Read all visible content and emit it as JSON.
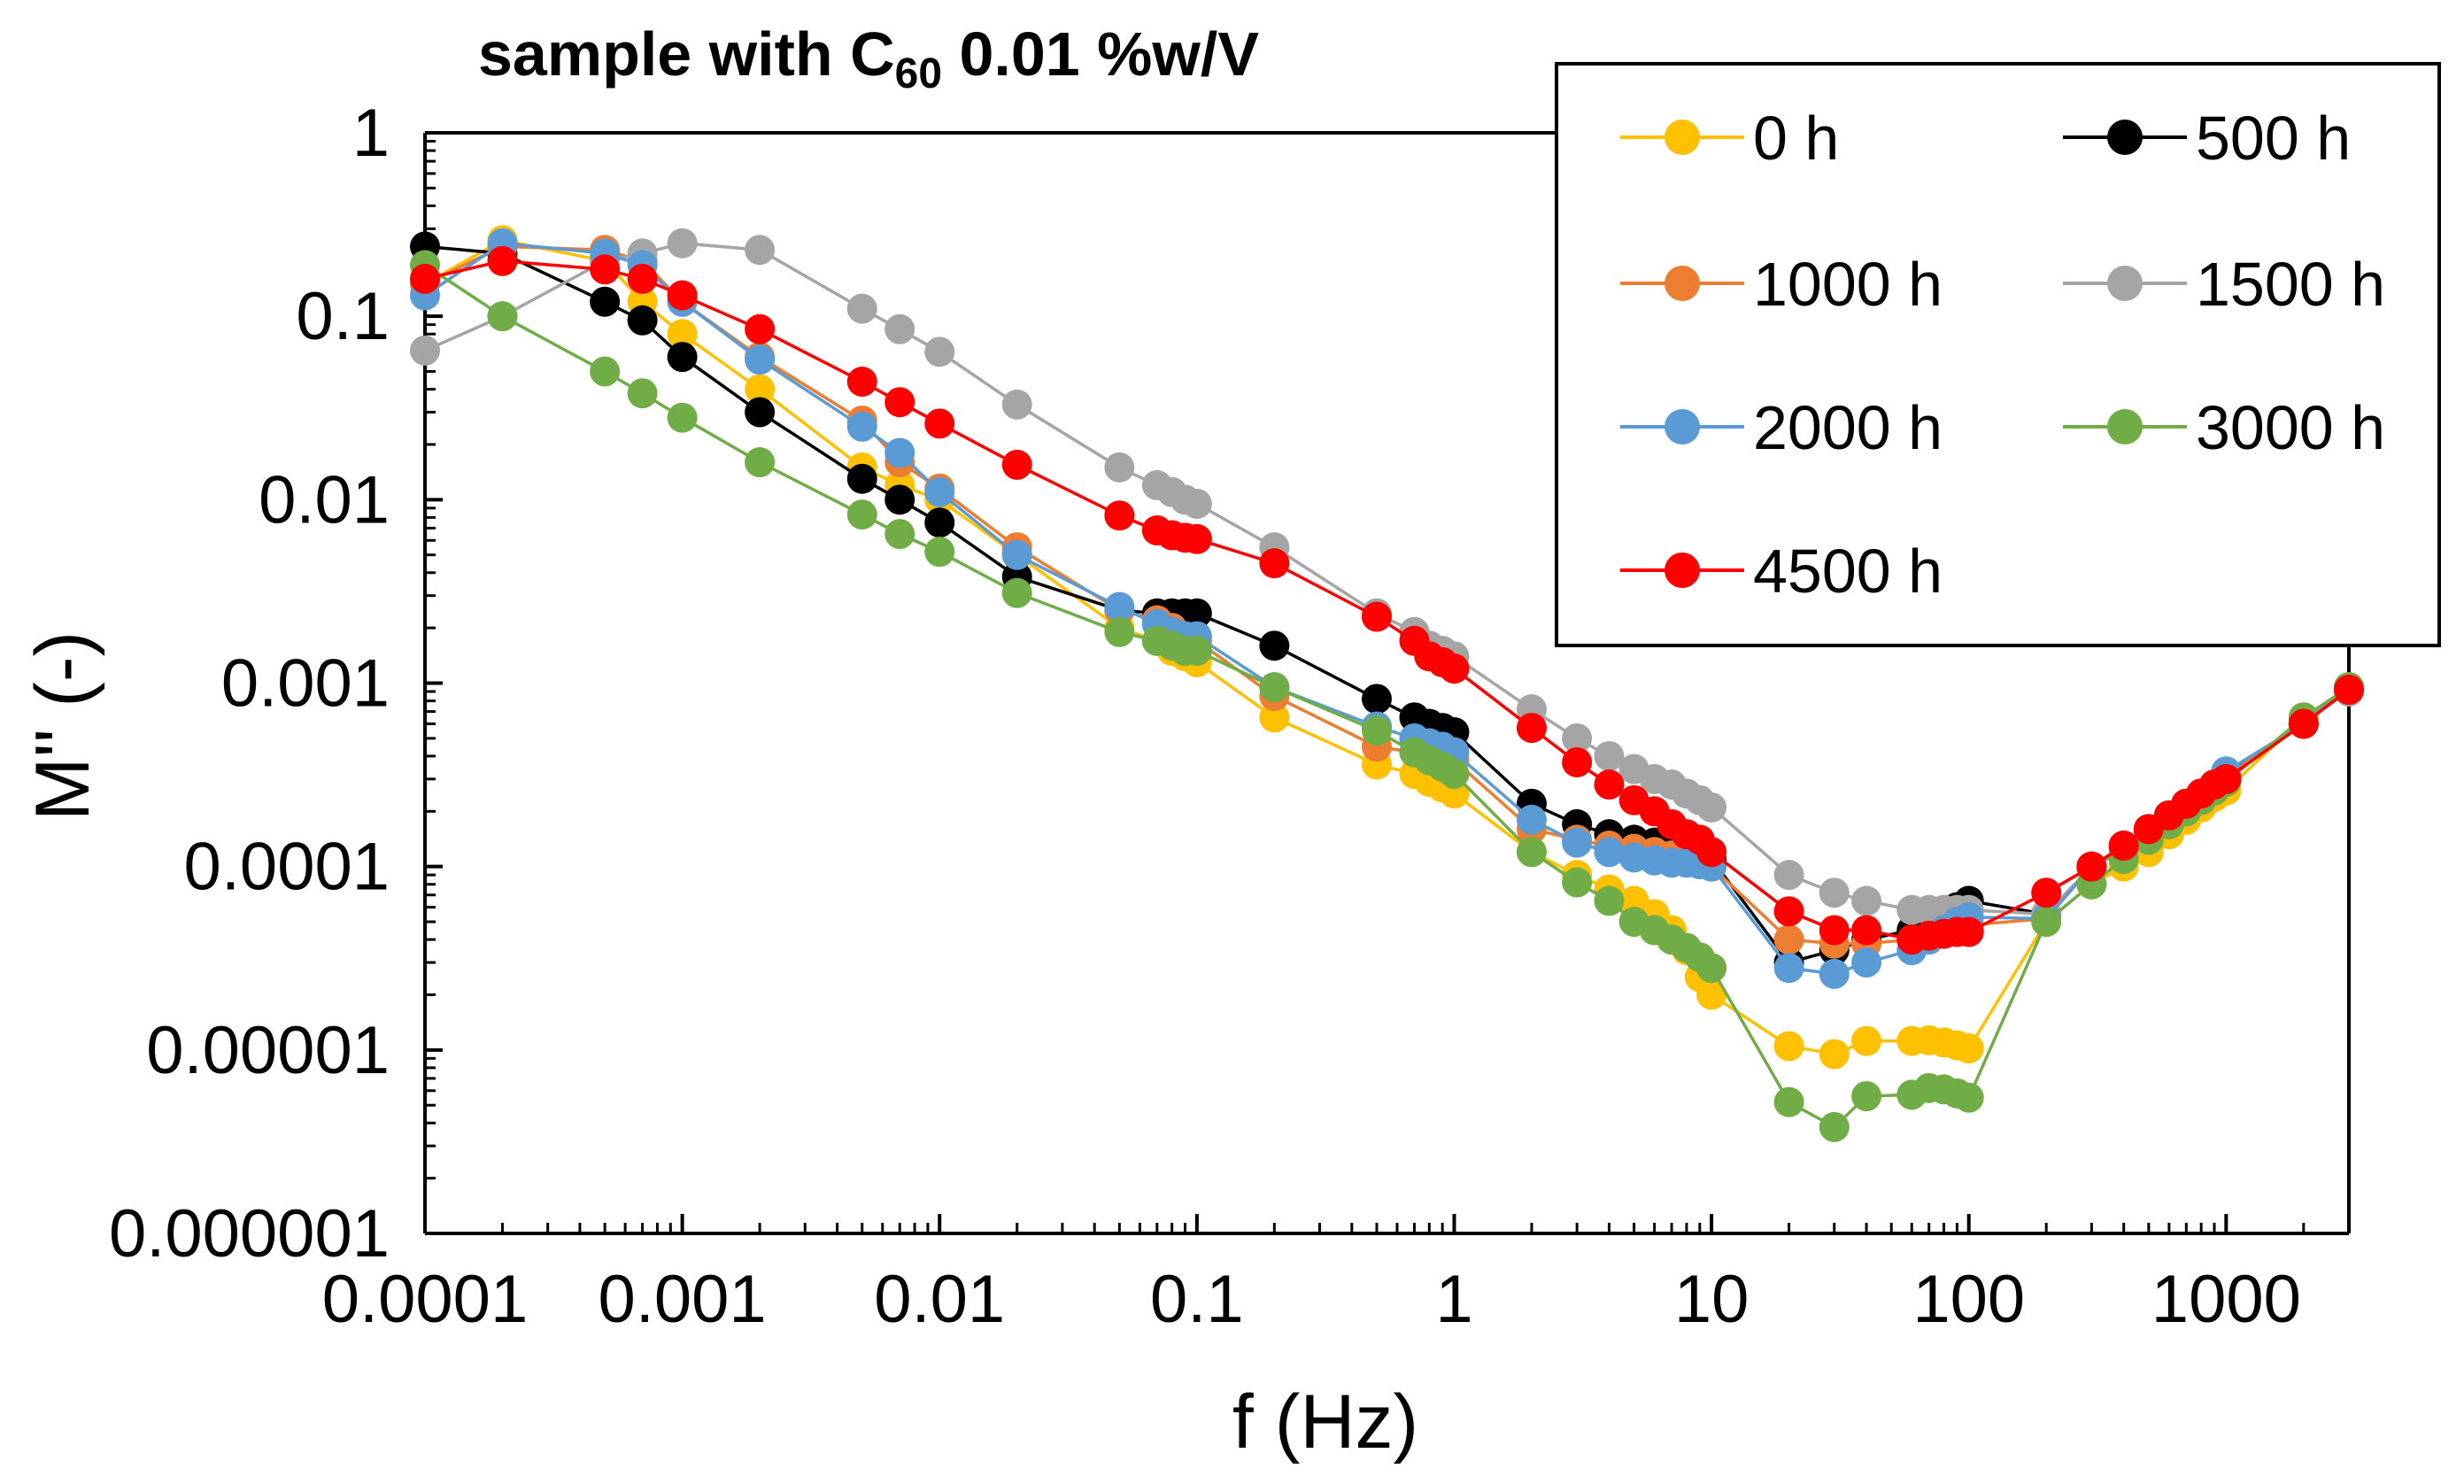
{
  "chart_data": {
    "type": "line",
    "title": {
      "prefix": "sample with C",
      "subscript": "60",
      "suffix": " 0.01 %w/V"
    },
    "xlabel": "f (Hz)",
    "ylabel": "M'' (-)",
    "xscale": "log",
    "yscale": "log",
    "xlim": [
      0.0001,
      3000
    ],
    "ylim": [
      1e-06,
      1
    ],
    "x_ticks": [
      0.0001,
      0.001,
      0.01,
      0.1,
      1,
      10,
      100,
      1000
    ],
    "x_tick_labels": [
      "0.0001",
      "0.001",
      "0.01",
      "0.1",
      "1",
      "10",
      "100",
      "1000"
    ],
    "y_ticks": [
      1,
      0.1,
      0.01,
      0.001,
      0.0001,
      1e-05,
      1e-06
    ],
    "y_tick_labels": [
      "1",
      "0.1",
      "0.01",
      "0.001",
      "0.0001",
      "0.00001",
      "0.000001"
    ],
    "grid": false,
    "legend_position": "top-right",
    "series": [
      {
        "name": "0 h",
        "color": "#FFC000",
        "x": [
          0.0001,
          0.0002,
          0.0005,
          0.0007,
          0.001,
          0.002,
          0.005,
          0.007,
          0.01,
          0.02,
          0.05,
          0.07,
          0.08,
          0.09,
          0.1,
          0.2,
          0.5,
          0.7,
          0.8,
          0.9,
          1,
          2,
          3,
          4,
          5,
          6,
          7,
          8,
          9,
          10,
          20,
          30,
          40,
          60,
          70,
          80,
          90,
          100,
          200,
          300,
          400,
          500,
          600,
          700,
          800,
          900,
          1000,
          2000,
          3000
        ],
        "y": [
          0.15,
          0.26,
          0.2,
          0.12,
          0.08,
          0.04,
          0.015,
          0.012,
          0.01,
          0.005,
          0.002,
          0.0017,
          0.0015,
          0.0014,
          0.0013,
          0.00065,
          0.00036,
          0.00032,
          0.00029,
          0.00027,
          0.00025,
          0.00012,
          9e-05,
          7.5e-05,
          6.5e-05,
          5.5e-05,
          4.5e-05,
          3.5e-05,
          2.5e-05,
          2e-05,
          1.05e-05,
          9.5e-06,
          1.12e-05,
          1.12e-05,
          1.13e-05,
          1.1e-05,
          1.06e-05,
          1.02e-05,
          5e-05,
          8e-05,
          0.0001,
          0.00012,
          0.00015,
          0.00018,
          0.00021,
          0.00024,
          0.00026,
          0.00065,
          0.00095
        ]
      },
      {
        "name": "500 h",
        "color": "#000000",
        "x": [
          0.0001,
          0.0002,
          0.0005,
          0.0007,
          0.001,
          0.002,
          0.005,
          0.007,
          0.01,
          0.02,
          0.05,
          0.07,
          0.08,
          0.09,
          0.1,
          0.2,
          0.5,
          0.7,
          0.8,
          0.9,
          1,
          2,
          3,
          4,
          5,
          6,
          7,
          8,
          9,
          10,
          20,
          30,
          40,
          60,
          70,
          80,
          90,
          100,
          200,
          300,
          400,
          500,
          600,
          700,
          800,
          900,
          1000,
          2000,
          3000
        ],
        "y": [
          0.24,
          0.22,
          0.12,
          0.095,
          0.06,
          0.03,
          0.013,
          0.01,
          0.0075,
          0.0038,
          0.0025,
          0.0024,
          0.0024,
          0.0024,
          0.0024,
          0.0016,
          0.00082,
          0.00065,
          0.0006,
          0.00057,
          0.00054,
          0.00022,
          0.00017,
          0.00015,
          0.00014,
          0.000135,
          0.00013,
          0.000125,
          0.00012,
          0.00011,
          3e-05,
          3.5e-05,
          4e-05,
          4.5e-05,
          5e-05,
          5.5e-05,
          6e-05,
          6.5e-05,
          5.5e-05,
          0.0001,
          0.00013,
          0.00016,
          0.00019,
          0.00022,
          0.00025,
          0.00028,
          0.00032,
          0.0006,
          0.00095
        ]
      },
      {
        "name": "1000 h",
        "color": "#ED7D31",
        "x": [
          0.0001,
          0.0002,
          0.0005,
          0.0007,
          0.001,
          0.002,
          0.005,
          0.007,
          0.01,
          0.02,
          0.05,
          0.07,
          0.08,
          0.09,
          0.1,
          0.2,
          0.5,
          0.7,
          0.8,
          0.9,
          1,
          2,
          3,
          4,
          5,
          6,
          7,
          8,
          9,
          10,
          20,
          30,
          40,
          60,
          70,
          80,
          90,
          100,
          200,
          300,
          400,
          500,
          600,
          700,
          800,
          900,
          1000,
          2000,
          3000
        ],
        "y": [
          0.15,
          0.24,
          0.23,
          0.2,
          0.12,
          0.06,
          0.027,
          0.016,
          0.0115,
          0.0055,
          0.0025,
          0.0022,
          0.002,
          0.0018,
          0.0017,
          0.00085,
          0.00045,
          0.00042,
          0.0004,
          0.00039,
          0.00038,
          0.00016,
          0.00014,
          0.00013,
          0.000125,
          0.00012,
          0.000115,
          0.00011,
          0.000105,
          0.0001,
          4e-05,
          3.8e-05,
          3.8e-05,
          4e-05,
          4.2e-05,
          4.4e-05,
          4.6e-05,
          4.8e-05,
          5.2e-05,
          0.0001,
          0.00013,
          0.00016,
          0.00019,
          0.00022,
          0.00025,
          0.00028,
          0.00031,
          0.0006,
          0.00095
        ]
      },
      {
        "name": "1500 h",
        "color": "#A5A5A5",
        "x": [
          0.0001,
          0.0002,
          0.0005,
          0.0007,
          0.001,
          0.002,
          0.005,
          0.007,
          0.01,
          0.02,
          0.05,
          0.07,
          0.08,
          0.09,
          0.1,
          0.2,
          0.5,
          0.7,
          0.8,
          0.9,
          1,
          2,
          3,
          4,
          5,
          6,
          7,
          8,
          9,
          10,
          20,
          30,
          40,
          60,
          70,
          80,
          90,
          100,
          200,
          300,
          400,
          500,
          600,
          700,
          800,
          900,
          1000,
          2000,
          3000
        ],
        "y": [
          0.065,
          0.1,
          0.2,
          0.22,
          0.25,
          0.23,
          0.11,
          0.085,
          0.064,
          0.033,
          0.015,
          0.012,
          0.011,
          0.01,
          0.0095,
          0.0055,
          0.0024,
          0.0019,
          0.0016,
          0.0015,
          0.0014,
          0.00072,
          0.0005,
          0.0004,
          0.00034,
          0.0003,
          0.00028,
          0.00025,
          0.00023,
          0.00021,
          9e-05,
          7.2e-05,
          6.5e-05,
          5.8e-05,
          5.8e-05,
          5.8e-05,
          5.8e-05,
          5.8e-05,
          5.5e-05,
          0.0001,
          0.00012,
          0.00015,
          0.00018,
          0.00021,
          0.00024,
          0.00027,
          0.0003,
          0.00062,
          0.0009
        ]
      },
      {
        "name": "2000 h",
        "color": "#5B9BD5",
        "x": [
          0.0001,
          0.0002,
          0.0005,
          0.0007,
          0.001,
          0.002,
          0.005,
          0.007,
          0.01,
          0.02,
          0.05,
          0.07,
          0.08,
          0.09,
          0.1,
          0.2,
          0.5,
          0.7,
          0.8,
          0.9,
          1,
          2,
          3,
          4,
          5,
          6,
          7,
          8,
          9,
          10,
          20,
          30,
          40,
          60,
          70,
          80,
          90,
          100,
          200,
          300,
          400,
          500,
          600,
          700,
          800,
          900,
          1000,
          2000,
          3000
        ],
        "y": [
          0.13,
          0.25,
          0.22,
          0.19,
          0.12,
          0.058,
          0.025,
          0.018,
          0.011,
          0.005,
          0.0026,
          0.0021,
          0.0019,
          0.0018,
          0.0018,
          0.00095,
          0.00058,
          0.0005,
          0.00047,
          0.00045,
          0.00042,
          0.00018,
          0.000135,
          0.00012,
          0.000112,
          0.000108,
          0.000105,
          0.000105,
          0.000103,
          0.0001,
          2.8e-05,
          2.6e-05,
          3e-05,
          3.5e-05,
          4e-05,
          4.5e-05,
          5e-05,
          5.3e-05,
          5.2e-05,
          0.0001,
          0.00013,
          0.00016,
          0.00019,
          0.00022,
          0.00025,
          0.00028,
          0.00033,
          0.0006,
          0.00095
        ]
      },
      {
        "name": "3000 h",
        "color": "#70AD47",
        "x": [
          0.0001,
          0.0002,
          0.0005,
          0.0007,
          0.001,
          0.002,
          0.005,
          0.007,
          0.01,
          0.02,
          0.05,
          0.07,
          0.08,
          0.09,
          0.1,
          0.2,
          0.5,
          0.7,
          0.8,
          0.9,
          1,
          2,
          3,
          4,
          5,
          6,
          7,
          8,
          9,
          10,
          20,
          30,
          40,
          60,
          70,
          80,
          90,
          100,
          200,
          300,
          400,
          500,
          600,
          700,
          800,
          900,
          1000,
          2000,
          3000
        ],
        "y": [
          0.19,
          0.1,
          0.05,
          0.038,
          0.028,
          0.016,
          0.0083,
          0.0065,
          0.0052,
          0.0031,
          0.0019,
          0.0017,
          0.0016,
          0.0015,
          0.0015,
          0.00095,
          0.00055,
          0.00042,
          0.00038,
          0.00035,
          0.00032,
          0.00012,
          8.2e-05,
          6.5e-05,
          5e-05,
          4.5e-05,
          4e-05,
          3.6e-05,
          3.2e-05,
          2.8e-05,
          5.2e-06,
          3.8e-06,
          5.6e-06,
          5.7e-06,
          6.2e-06,
          6.1e-06,
          5.8e-06,
          5.5e-06,
          5e-05,
          8e-05,
          0.00011,
          0.00014,
          0.00017,
          0.0002,
          0.00023,
          0.00026,
          0.00029,
          0.00065,
          0.00095
        ]
      },
      {
        "name": "4500 h",
        "color": "#FF0000",
        "x": [
          0.0001,
          0.0002,
          0.0005,
          0.0007,
          0.001,
          0.002,
          0.005,
          0.007,
          0.01,
          0.02,
          0.05,
          0.07,
          0.08,
          0.09,
          0.1,
          0.2,
          0.5,
          0.7,
          0.8,
          0.9,
          1,
          2,
          3,
          4,
          5,
          6,
          7,
          8,
          9,
          10,
          20,
          30,
          40,
          60,
          70,
          80,
          90,
          100,
          200,
          300,
          400,
          500,
          600,
          700,
          800,
          900,
          1000,
          2000,
          3000
        ],
        "y": [
          0.16,
          0.2,
          0.18,
          0.16,
          0.13,
          0.085,
          0.044,
          0.034,
          0.026,
          0.0155,
          0.0082,
          0.0068,
          0.0064,
          0.0062,
          0.0061,
          0.0045,
          0.0023,
          0.0017,
          0.0014,
          0.0013,
          0.0012,
          0.00057,
          0.00037,
          0.00028,
          0.00023,
          0.0002,
          0.00017,
          0.00015,
          0.00014,
          0.00012,
          5.7e-05,
          4.5e-05,
          4.5e-05,
          4e-05,
          4.2e-05,
          4.3e-05,
          4.4e-05,
          4.4e-05,
          7.2e-05,
          0.0001,
          0.00013,
          0.00016,
          0.00019,
          0.00022,
          0.00025,
          0.00028,
          0.0003,
          0.0006,
          0.00092
        ]
      }
    ]
  }
}
